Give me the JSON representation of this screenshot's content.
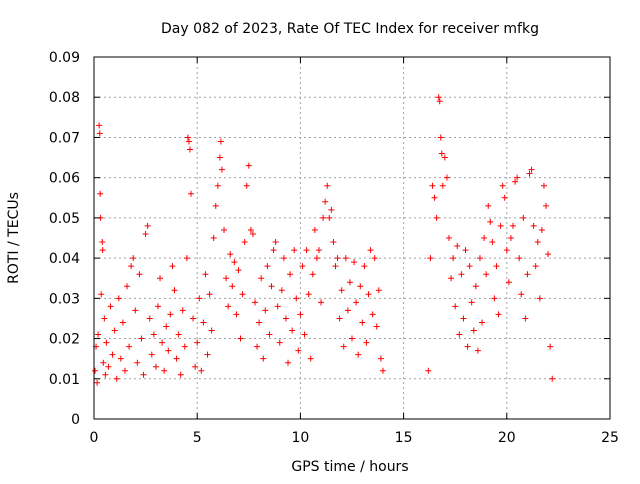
{
  "chart_data": {
    "type": "scatter",
    "title": "Day 082 of 2023, Rate Of TEC Index for receiver mfkg",
    "xlabel": "GPS time / hours",
    "ylabel": "ROTI / TECUs",
    "xlim": [
      0,
      25
    ],
    "ylim": [
      0,
      0.09
    ],
    "xticks": [
      "0",
      "5",
      "10",
      "15",
      "20",
      "25"
    ],
    "yticks": [
      "0",
      "0.01",
      "0.02",
      "0.03",
      "0.04",
      "0.05",
      "0.06",
      "0.07",
      "0.08",
      "0.09"
    ],
    "grid": true,
    "marker": "+",
    "color": "#ff0000",
    "series": [
      {
        "points": [
          [
            0.05,
            0.012
          ],
          [
            0.1,
            0.018
          ],
          [
            0.15,
            0.009
          ],
          [
            0.2,
            0.021
          ],
          [
            0.25,
            0.073
          ],
          [
            0.28,
            0.071
          ],
          [
            0.3,
            0.056
          ],
          [
            0.32,
            0.05
          ],
          [
            0.35,
            0.031
          ],
          [
            0.4,
            0.044
          ],
          [
            0.42,
            0.042
          ],
          [
            0.45,
            0.014
          ],
          [
            0.5,
            0.025
          ],
          [
            0.55,
            0.011
          ],
          [
            0.6,
            0.019
          ],
          [
            0.7,
            0.013
          ],
          [
            0.8,
            0.028
          ],
          [
            0.9,
            0.016
          ],
          [
            1.0,
            0.022
          ],
          [
            1.1,
            0.01
          ],
          [
            1.2,
            0.03
          ],
          [
            1.3,
            0.015
          ],
          [
            1.4,
            0.024
          ],
          [
            1.5,
            0.012
          ],
          [
            1.6,
            0.033
          ],
          [
            1.7,
            0.018
          ],
          [
            1.8,
            0.038
          ],
          [
            1.9,
            0.04
          ],
          [
            2.0,
            0.027
          ],
          [
            2.1,
            0.014
          ],
          [
            2.2,
            0.036
          ],
          [
            2.3,
            0.02
          ],
          [
            2.4,
            0.011
          ],
          [
            2.5,
            0.046
          ],
          [
            2.6,
            0.048
          ],
          [
            2.7,
            0.025
          ],
          [
            2.8,
            0.016
          ],
          [
            2.9,
            0.021
          ],
          [
            3.0,
            0.013
          ],
          [
            3.1,
            0.028
          ],
          [
            3.2,
            0.035
          ],
          [
            3.3,
            0.019
          ],
          [
            3.4,
            0.012
          ],
          [
            3.5,
            0.023
          ],
          [
            3.6,
            0.017
          ],
          [
            3.7,
            0.026
          ],
          [
            3.8,
            0.038
          ],
          [
            3.9,
            0.032
          ],
          [
            4.0,
            0.015
          ],
          [
            4.1,
            0.021
          ],
          [
            4.2,
            0.011
          ],
          [
            4.3,
            0.027
          ],
          [
            4.4,
            0.018
          ],
          [
            4.5,
            0.04
          ],
          [
            4.55,
            0.07
          ],
          [
            4.6,
            0.069
          ],
          [
            4.65,
            0.067
          ],
          [
            4.7,
            0.056
          ],
          [
            4.8,
            0.025
          ],
          [
            4.9,
            0.013
          ],
          [
            5.0,
            0.019
          ],
          [
            5.1,
            0.03
          ],
          [
            5.2,
            0.012
          ],
          [
            5.3,
            0.024
          ],
          [
            5.4,
            0.036
          ],
          [
            5.5,
            0.016
          ],
          [
            5.6,
            0.031
          ],
          [
            5.7,
            0.022
          ],
          [
            5.8,
            0.045
          ],
          [
            5.9,
            0.053
          ],
          [
            6.0,
            0.058
          ],
          [
            6.1,
            0.065
          ],
          [
            6.15,
            0.069
          ],
          [
            6.2,
            0.062
          ],
          [
            6.3,
            0.047
          ],
          [
            6.4,
            0.035
          ],
          [
            6.5,
            0.028
          ],
          [
            6.6,
            0.041
          ],
          [
            6.7,
            0.033
          ],
          [
            6.8,
            0.039
          ],
          [
            6.9,
            0.026
          ],
          [
            7.0,
            0.037
          ],
          [
            7.1,
            0.02
          ],
          [
            7.2,
            0.031
          ],
          [
            7.3,
            0.044
          ],
          [
            7.4,
            0.058
          ],
          [
            7.5,
            0.063
          ],
          [
            7.6,
            0.047
          ],
          [
            7.7,
            0.046
          ],
          [
            7.8,
            0.029
          ],
          [
            7.9,
            0.018
          ],
          [
            8.0,
            0.024
          ],
          [
            8.1,
            0.035
          ],
          [
            8.2,
            0.015
          ],
          [
            8.3,
            0.027
          ],
          [
            8.4,
            0.038
          ],
          [
            8.5,
            0.021
          ],
          [
            8.6,
            0.033
          ],
          [
            8.7,
            0.042
          ],
          [
            8.8,
            0.044
          ],
          [
            8.9,
            0.028
          ],
          [
            9.0,
            0.019
          ],
          [
            9.1,
            0.032
          ],
          [
            9.2,
            0.04
          ],
          [
            9.3,
            0.025
          ],
          [
            9.4,
            0.014
          ],
          [
            9.5,
            0.036
          ],
          [
            9.6,
            0.022
          ],
          [
            9.7,
            0.042
          ],
          [
            9.8,
            0.03
          ],
          [
            9.9,
            0.017
          ],
          [
            10.0,
            0.026
          ],
          [
            10.1,
            0.038
          ],
          [
            10.2,
            0.021
          ],
          [
            10.3,
            0.042
          ],
          [
            10.4,
            0.031
          ],
          [
            10.5,
            0.015
          ],
          [
            10.6,
            0.036
          ],
          [
            10.7,
            0.047
          ],
          [
            10.8,
            0.04
          ],
          [
            10.9,
            0.042
          ],
          [
            11.0,
            0.029
          ],
          [
            11.1,
            0.05
          ],
          [
            11.2,
            0.054
          ],
          [
            11.3,
            0.058
          ],
          [
            11.4,
            0.05
          ],
          [
            11.5,
            0.052
          ],
          [
            11.6,
            0.044
          ],
          [
            11.7,
            0.038
          ],
          [
            11.8,
            0.04
          ],
          [
            11.9,
            0.025
          ],
          [
            12.0,
            0.032
          ],
          [
            12.1,
            0.018
          ],
          [
            12.2,
            0.04
          ],
          [
            12.3,
            0.027
          ],
          [
            12.4,
            0.034
          ],
          [
            12.5,
            0.02
          ],
          [
            12.6,
            0.039
          ],
          [
            12.7,
            0.029
          ],
          [
            12.8,
            0.016
          ],
          [
            12.9,
            0.033
          ],
          [
            13.0,
            0.024
          ],
          [
            13.1,
            0.038
          ],
          [
            13.2,
            0.019
          ],
          [
            13.3,
            0.031
          ],
          [
            13.4,
            0.042
          ],
          [
            13.5,
            0.026
          ],
          [
            13.6,
            0.04
          ],
          [
            13.7,
            0.023
          ],
          [
            13.8,
            0.032
          ],
          [
            13.9,
            0.015
          ],
          [
            14.0,
            0.012
          ],
          [
            16.2,
            0.012
          ],
          [
            16.3,
            0.04
          ],
          [
            16.4,
            0.058
          ],
          [
            16.5,
            0.055
          ],
          [
            16.6,
            0.05
          ],
          [
            16.7,
            0.08
          ],
          [
            16.75,
            0.079
          ],
          [
            16.8,
            0.07
          ],
          [
            16.85,
            0.066
          ],
          [
            16.9,
            0.058
          ],
          [
            17.0,
            0.065
          ],
          [
            17.1,
            0.06
          ],
          [
            17.2,
            0.045
          ],
          [
            17.3,
            0.035
          ],
          [
            17.4,
            0.04
          ],
          [
            17.5,
            0.028
          ],
          [
            17.6,
            0.043
          ],
          [
            17.7,
            0.021
          ],
          [
            17.8,
            0.036
          ],
          [
            17.9,
            0.025
          ],
          [
            18.0,
            0.042
          ],
          [
            18.1,
            0.018
          ],
          [
            18.2,
            0.038
          ],
          [
            18.3,
            0.029
          ],
          [
            18.4,
            0.022
          ],
          [
            18.5,
            0.033
          ],
          [
            18.6,
            0.017
          ],
          [
            18.7,
            0.04
          ],
          [
            18.8,
            0.024
          ],
          [
            18.9,
            0.045
          ],
          [
            19.0,
            0.036
          ],
          [
            19.1,
            0.053
          ],
          [
            19.2,
            0.049
          ],
          [
            19.3,
            0.044
          ],
          [
            19.4,
            0.03
          ],
          [
            19.5,
            0.038
          ],
          [
            19.6,
            0.026
          ],
          [
            19.7,
            0.048
          ],
          [
            19.8,
            0.058
          ],
          [
            19.9,
            0.055
          ],
          [
            20.0,
            0.042
          ],
          [
            20.1,
            0.034
          ],
          [
            20.2,
            0.045
          ],
          [
            20.3,
            0.048
          ],
          [
            20.4,
            0.059
          ],
          [
            20.5,
            0.06
          ],
          [
            20.6,
            0.04
          ],
          [
            20.7,
            0.031
          ],
          [
            20.8,
            0.05
          ],
          [
            20.9,
            0.025
          ],
          [
            21.0,
            0.036
          ],
          [
            21.1,
            0.061
          ],
          [
            21.2,
            0.062
          ],
          [
            21.3,
            0.048
          ],
          [
            21.4,
            0.038
          ],
          [
            21.5,
            0.044
          ],
          [
            21.6,
            0.03
          ],
          [
            21.7,
            0.047
          ],
          [
            21.8,
            0.058
          ],
          [
            21.9,
            0.053
          ],
          [
            22.0,
            0.041
          ],
          [
            22.1,
            0.018
          ],
          [
            22.2,
            0.01
          ]
        ]
      }
    ]
  }
}
